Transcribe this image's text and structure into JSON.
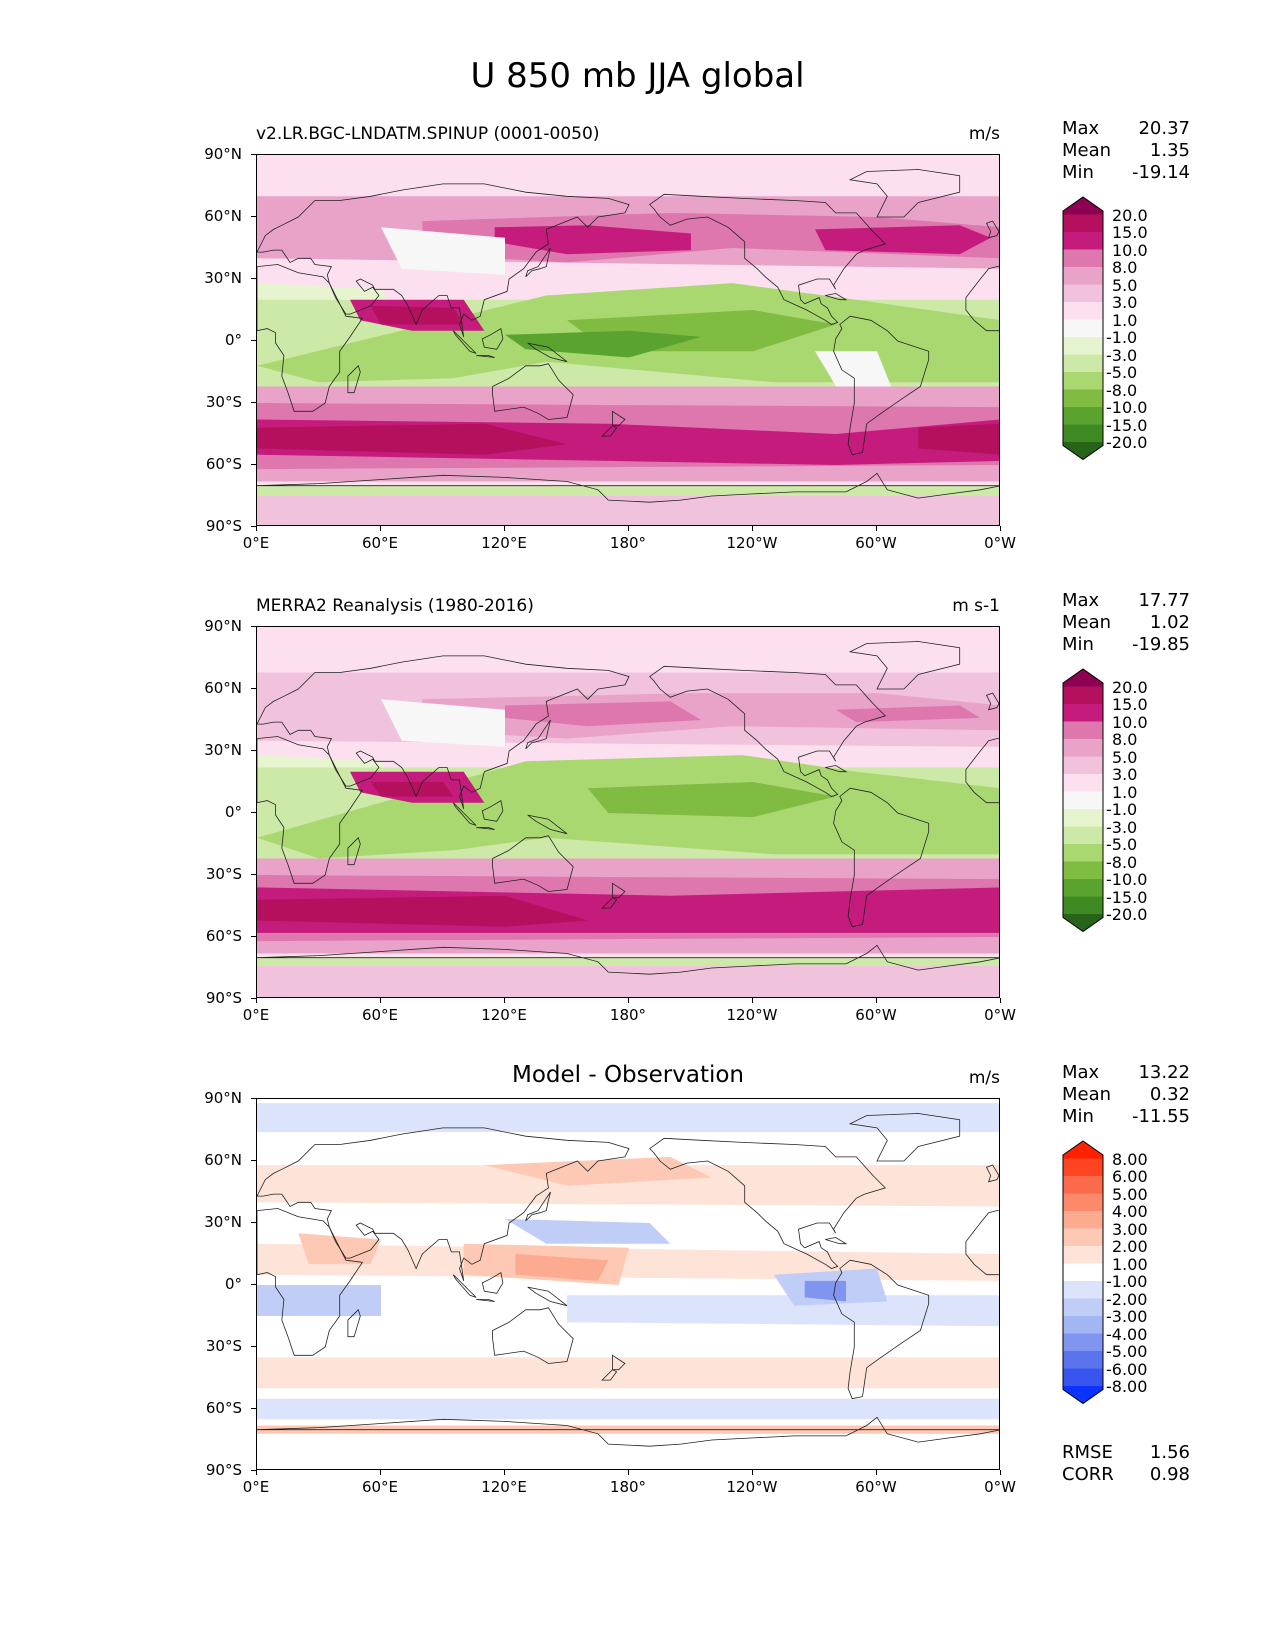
{
  "figure": {
    "title": "U 850 mb JJA global"
  },
  "axes": {
    "lat_labels": [
      "90°N",
      "60°N",
      "30°N",
      "0°",
      "30°S",
      "60°S",
      "90°S"
    ],
    "lon_labels": [
      "0°E",
      "60°E",
      "120°E",
      "180°",
      "120°W",
      "60°W",
      "0°W"
    ]
  },
  "panels": [
    {
      "title": "v2.LR.BGC-LNDATM.SPINUP (0001-0050)",
      "units": "m/s",
      "stats": [
        {
          "k": "Max",
          "v": "20.37"
        },
        {
          "k": "Mean",
          "v": "1.35"
        },
        {
          "k": "Min",
          "v": "-19.14"
        }
      ],
      "colorbar": {
        "levels": [
          "20.0",
          "15.0",
          "10.0",
          "8.0",
          "5.0",
          "3.0",
          "1.0",
          "-1.0",
          "-3.0",
          "-5.0",
          "-8.0",
          "-10.0",
          "-15.0",
          "-20.0"
        ],
        "colors": [
          "#8e0152",
          "#b4105e",
          "#c51b7d",
          "#de77ae",
          "#e9a3c9",
          "#f1c2dc",
          "#fde0ef",
          "#f7f7f7",
          "#e6f5d0",
          "#cde9a8",
          "#a9d871",
          "#7fbc41",
          "#5aa32f",
          "#3f8a22",
          "#276419"
        ]
      }
    },
    {
      "title": "MERRA2 Reanalysis (1980-2016)",
      "units": "m s-1",
      "stats": [
        {
          "k": "Max",
          "v": "17.77"
        },
        {
          "k": "Mean",
          "v": "1.02"
        },
        {
          "k": "Min",
          "v": "-19.85"
        }
      ],
      "colorbar": {
        "levels": [
          "20.0",
          "15.0",
          "10.0",
          "8.0",
          "5.0",
          "3.0",
          "1.0",
          "-1.0",
          "-3.0",
          "-5.0",
          "-8.0",
          "-10.0",
          "-15.0",
          "-20.0"
        ],
        "colors": [
          "#8e0152",
          "#b4105e",
          "#c51b7d",
          "#de77ae",
          "#e9a3c9",
          "#f1c2dc",
          "#fde0ef",
          "#f7f7f7",
          "#e6f5d0",
          "#cde9a8",
          "#a9d871",
          "#7fbc41",
          "#5aa32f",
          "#3f8a22",
          "#276419"
        ]
      }
    },
    {
      "title": "Model - Observation",
      "units": "m/s",
      "stats": [
        {
          "k": "Max",
          "v": "13.22"
        },
        {
          "k": "Mean",
          "v": "0.32"
        },
        {
          "k": "Min",
          "v": "-11.55"
        }
      ],
      "extra_stats": [
        {
          "k": "RMSE",
          "v": "1.56"
        },
        {
          "k": "CORR",
          "v": "0.98"
        }
      ],
      "colorbar": {
        "levels": [
          "8.00",
          "6.00",
          "5.00",
          "4.00",
          "3.00",
          "2.00",
          "1.00",
          "-1.00",
          "-2.00",
          "-3.00",
          "-4.00",
          "-5.00",
          "-6.00",
          "-8.00"
        ],
        "colors": [
          "#ff2200",
          "#ff4422",
          "#fb6a4a",
          "#fc8a6a",
          "#fcaa90",
          "#fdc9b5",
          "#fee4d8",
          "#ffffff",
          "#dbe4fb",
          "#c0cdf7",
          "#a3b6f4",
          "#7f95f0",
          "#5b74ee",
          "#3a55ef",
          "#0a33ff"
        ]
      }
    }
  ]
}
